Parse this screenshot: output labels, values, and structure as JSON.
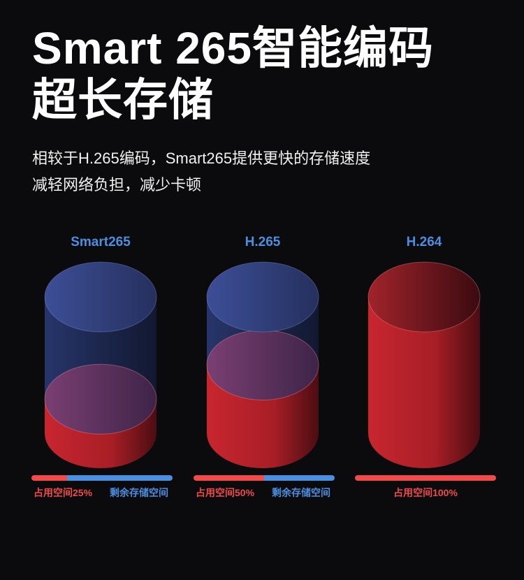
{
  "title": {
    "line1": "Smart 265智能编码",
    "line2": "超长存储"
  },
  "subtitle": {
    "line1": "相较于H.265编码，Smart265提供更快的存储速度",
    "line2": "减轻网络负担，减少卡顿"
  },
  "colors": {
    "used": "#f04a4a",
    "free": "#4a8fe0",
    "background": "#0b0a0d"
  },
  "columns": [
    {
      "label": "Smart265",
      "used_fraction": 0.25,
      "used_label": "占用空间25%",
      "free_label": "剩余存储空间"
    },
    {
      "label": "H.265",
      "used_fraction": 0.5,
      "used_label": "占用空间50%",
      "free_label": "剩余存储空间"
    },
    {
      "label": "H.264",
      "used_fraction": 1.0,
      "used_label": "占用空间100%",
      "free_label": ""
    }
  ]
}
